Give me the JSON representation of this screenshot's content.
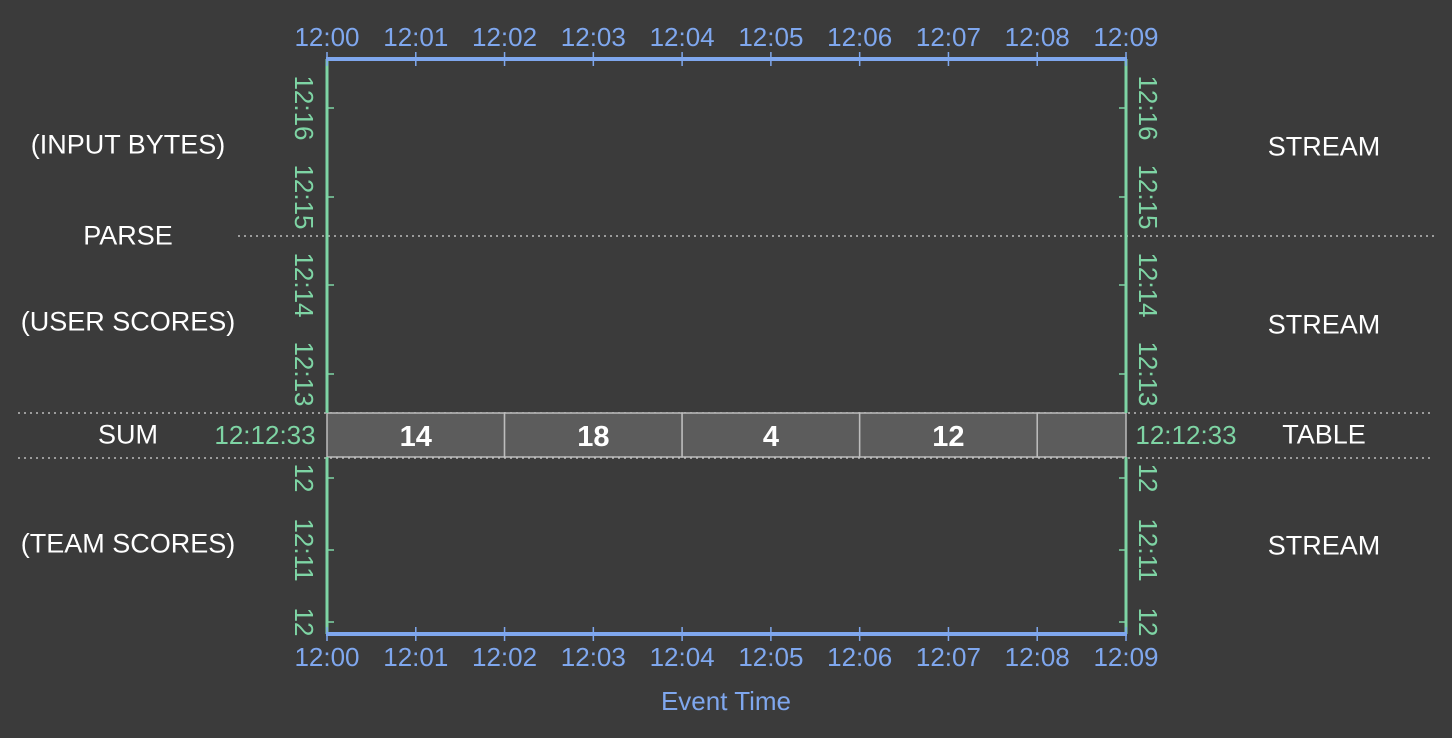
{
  "colors": {
    "background": "#3b3b3b",
    "event_time_axis": "#7fa7ee",
    "processing_time_axis": "#7ed4a4",
    "table_cell_fill": "#5c5c5c",
    "table_cell_stroke": "#bdbdbd",
    "text": "#ffffff",
    "divider": "#bdbdbd"
  },
  "event_time_axis": {
    "title": "Event Time",
    "ticks": [
      "12:00",
      "12:01",
      "12:02",
      "12:03",
      "12:04",
      "12:05",
      "12:06",
      "12:07",
      "12:08",
      "12:09"
    ]
  },
  "processing_time_axis": {
    "upper_ticks": [
      "12:16",
      "12:15",
      "12:14",
      "12:13"
    ],
    "lower_ticks": [
      "12",
      "12:11",
      "12"
    ],
    "current_time": "12:12:33"
  },
  "pipeline": {
    "left_labels": [
      "(INPUT BYTES)",
      "PARSE",
      "(USER SCORES)",
      "SUM",
      "(TEAM SCORES)"
    ],
    "right_labels": [
      "STREAM",
      "STREAM",
      "TABLE",
      "STREAM"
    ]
  },
  "table_values": [
    "14",
    "18",
    "4",
    "12"
  ]
}
